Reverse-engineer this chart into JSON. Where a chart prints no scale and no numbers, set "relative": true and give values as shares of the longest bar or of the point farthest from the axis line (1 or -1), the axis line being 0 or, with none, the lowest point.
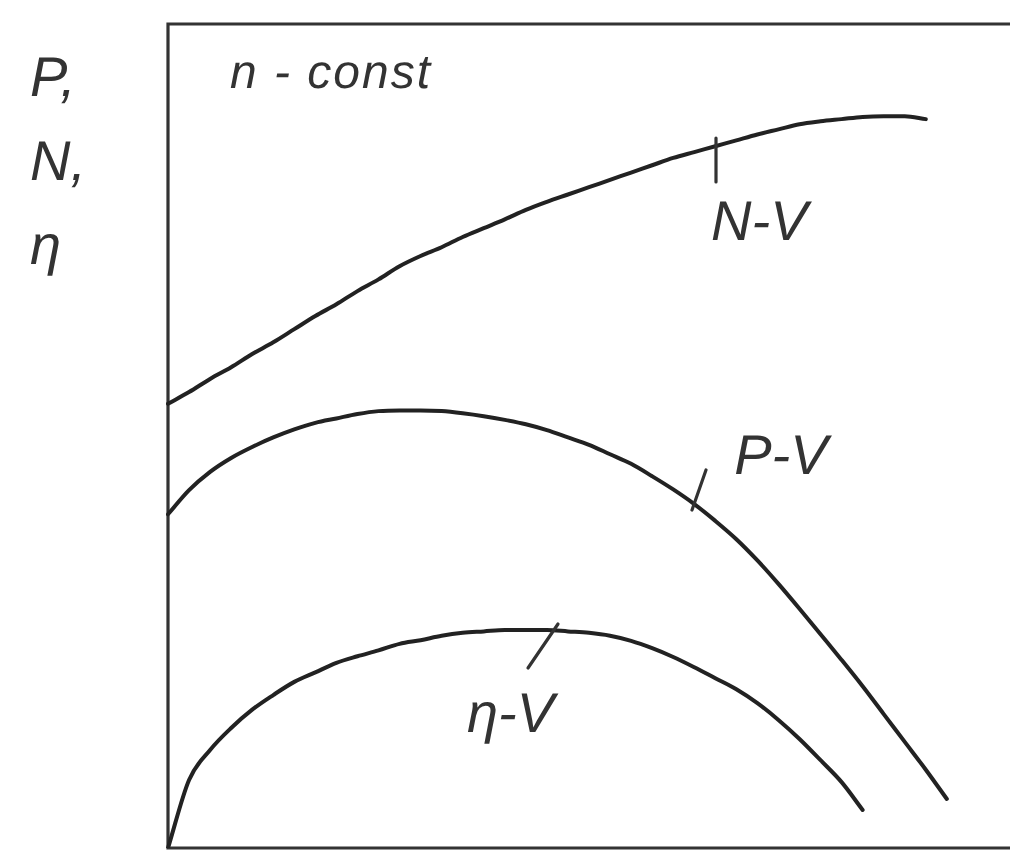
{
  "chart_data": {
    "type": "line",
    "relative": true,
    "ylabel": "P, N, η",
    "annotations": [
      "n - const"
    ],
    "categories": [
      null,
      null,
      null,
      null,
      null,
      null,
      null,
      null,
      null,
      null,
      null,
      null,
      null,
      null,
      null,
      null,
      null,
      null,
      null,
      null,
      null,
      null,
      null,
      null,
      null,
      null,
      null,
      null,
      null,
      null,
      null,
      null,
      null,
      null,
      null,
      null,
      null,
      null,
      null,
      null,
      null
    ],
    "series": [
      {
        "name": "N-V",
        "color": "#222222",
        "values": [
          0.607,
          0.623,
          0.641,
          0.657,
          0.675,
          0.691,
          0.709,
          0.727,
          0.743,
          0.761,
          0.777,
          0.795,
          0.809,
          0.821,
          0.835,
          0.847,
          0.859,
          0.872,
          0.883,
          0.893,
          0.903,
          0.913,
          0.923,
          0.933,
          0.943,
          0.951,
          0.959,
          0.967,
          0.975,
          0.982,
          0.989,
          0.993,
          0.996,
          0.999,
          1,
          1,
          0.996,
          null,
          null,
          null,
          null
        ]
      },
      {
        "name": "P-V",
        "color": "#222222",
        "values": [
          0.456,
          0.489,
          0.514,
          0.533,
          0.548,
          0.561,
          0.572,
          0.581,
          0.587,
          0.593,
          0.597,
          0.598,
          0.598,
          0.597,
          0.594,
          0.59,
          0.585,
          0.579,
          0.571,
          0.561,
          0.551,
          0.538,
          0.525,
          0.508,
          0.49,
          0.47,
          0.447,
          0.422,
          0.393,
          0.361,
          0.327,
          0.292,
          0.257,
          0.221,
          0.183,
          0.145,
          0.107,
          0.067,
          null,
          null,
          null
        ]
      },
      {
        "name": "η-V",
        "color": "#222222",
        "values": [
          0,
          0.093,
          0.134,
          0.164,
          0.189,
          0.209,
          0.227,
          0.24,
          0.253,
          0.262,
          0.27,
          0.279,
          0.284,
          0.29,
          0.294,
          0.296,
          0.298,
          0.298,
          0.298,
          0.296,
          0.294,
          0.29,
          0.283,
          0.273,
          0.261,
          0.247,
          0.232,
          0.217,
          0.198,
          0.175,
          0.149,
          0.12,
          0.09,
          0.052,
          null,
          null,
          null,
          null,
          null,
          null,
          null
        ]
      }
    ]
  }
}
